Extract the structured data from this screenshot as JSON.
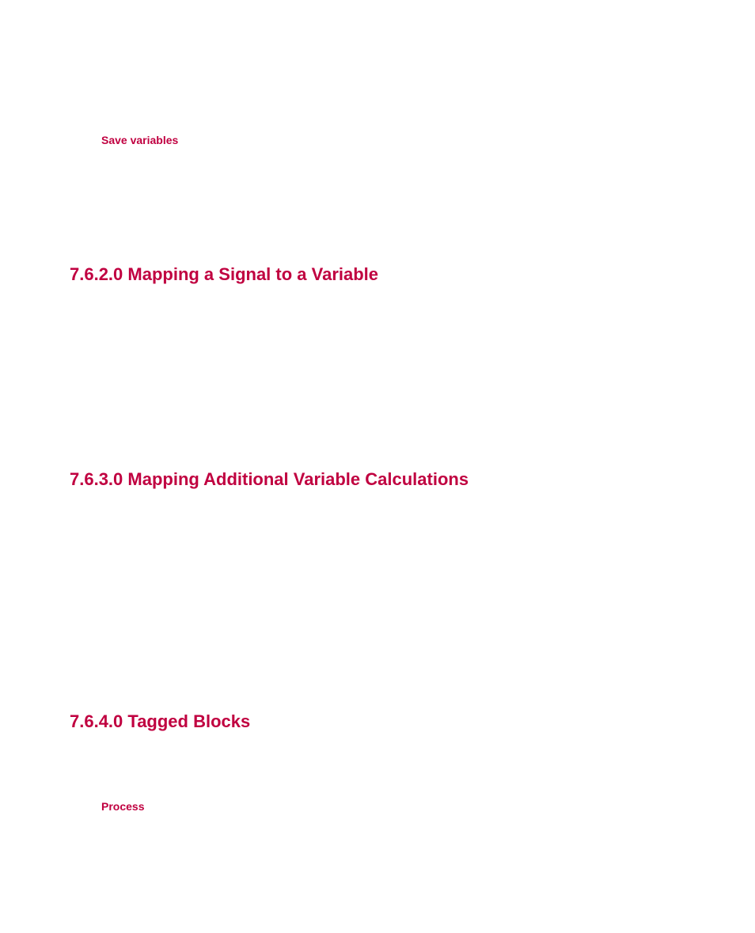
{
  "subheading_save_variables": "Save variables",
  "sections": {
    "s1": {
      "heading": "7.6.2.0 Mapping a Signal to a Variable"
    },
    "s2": {
      "heading": "7.6.3.0 Mapping Additional Variable Calculations"
    },
    "s3": {
      "heading": "7.6.4.0 Tagged Blocks"
    }
  },
  "process_label": "Process",
  "colors": {
    "accent": "#c00040",
    "background": "#ffffff"
  }
}
